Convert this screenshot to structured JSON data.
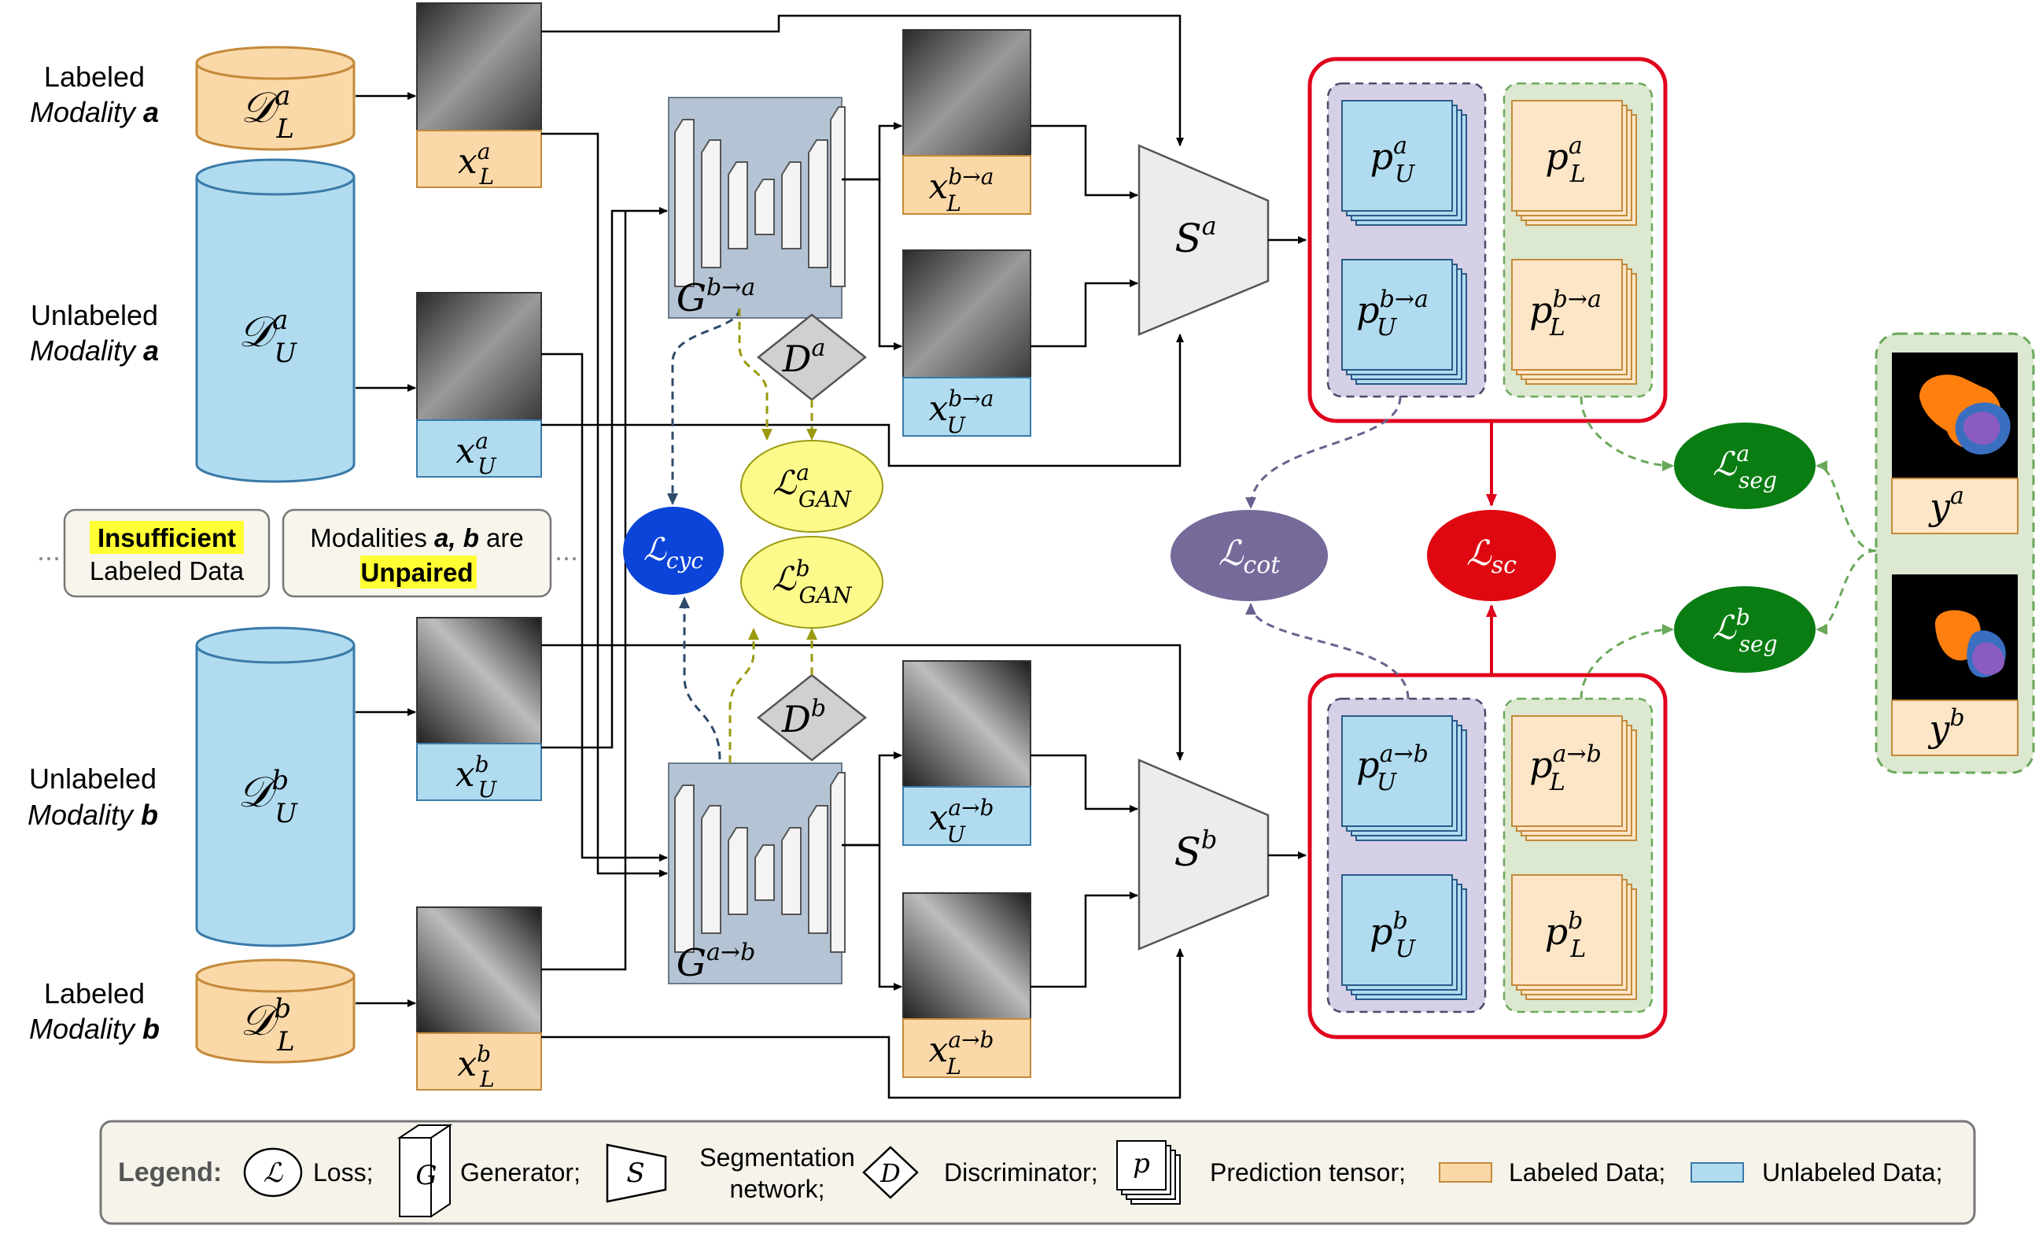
{
  "modalities": {
    "labeled_a": {
      "line1": "Labeled",
      "line2": "Modality ",
      "letter": "a"
    },
    "unlabeled_a": {
      "line1": "Unlabeled",
      "line2": "Modality ",
      "letter": "a"
    },
    "unlabeled_b": {
      "line1": "Unlabeled",
      "line2": "Modality ",
      "letter": "b"
    },
    "labeled_b": {
      "line1": "Labeled",
      "line2": "Modality ",
      "letter": "b"
    }
  },
  "notes": {
    "insufficient": {
      "highlight": "Insufficient",
      "rest": "Labeled Data"
    },
    "unpaired": {
      "prefix": "Modalities ",
      "vars": "a, b",
      "suffix": " are",
      "highlight": "Unpaired"
    },
    "ellipsis": "..."
  },
  "datasets": {
    "DLa": {
      "base": "𝒟",
      "sup": "a",
      "sub": "L"
    },
    "DUa": {
      "base": "𝒟",
      "sup": "a",
      "sub": "U"
    },
    "DUb": {
      "base": "𝒟",
      "sup": "b",
      "sub": "U"
    },
    "DLb": {
      "base": "𝒟",
      "sup": "b",
      "sub": "L"
    }
  },
  "images": {
    "xLa": {
      "base": "x",
      "sup": "a",
      "sub": "L"
    },
    "xUa": {
      "base": "x",
      "sup": "a",
      "sub": "U"
    },
    "xUb": {
      "base": "x",
      "sup": "b",
      "sub": "U"
    },
    "xLb": {
      "base": "x",
      "sup": "b",
      "sub": "L"
    },
    "xLba": {
      "base": "x",
      "sup": "b→a",
      "sub": "L"
    },
    "xUba": {
      "base": "x",
      "sup": "b→a",
      "sub": "U"
    },
    "xUab": {
      "base": "x",
      "sup": "a→b",
      "sub": "U"
    },
    "xLab": {
      "base": "x",
      "sup": "a→b",
      "sub": "L"
    }
  },
  "networks": {
    "Gba": {
      "base": "G",
      "sup": "b→a"
    },
    "Gab": {
      "base": "G",
      "sup": "a→b"
    },
    "Da": {
      "base": "D",
      "sup": "a"
    },
    "Db": {
      "base": "D",
      "sup": "b"
    },
    "Sa": {
      "base": "S",
      "sup": "a"
    },
    "Sb": {
      "base": "S",
      "sup": "b"
    }
  },
  "predictions": {
    "pUa": {
      "base": "p",
      "sup": "a",
      "sub": "U"
    },
    "pUba": {
      "base": "p",
      "sup": "b→a",
      "sub": "U"
    },
    "pLa": {
      "base": "p",
      "sup": "a",
      "sub": "L"
    },
    "pLba": {
      "base": "p",
      "sup": "b→a",
      "sub": "L"
    },
    "pUab": {
      "base": "p",
      "sup": "a→b",
      "sub": "U"
    },
    "pUb": {
      "base": "p",
      "sup": "b",
      "sub": "U"
    },
    "pLab": {
      "base": "p",
      "sup": "a→b",
      "sub": "L"
    },
    "pLb": {
      "base": "p",
      "sup": "b",
      "sub": "L"
    }
  },
  "losses": {
    "cyc": {
      "base": "ℒ",
      "sub": "cyc"
    },
    "gan_a": {
      "base": "ℒ",
      "sup": "a",
      "sub": "GAN"
    },
    "gan_b": {
      "base": "ℒ",
      "sup": "b",
      "sub": "GAN"
    },
    "cot": {
      "base": "ℒ",
      "sub": "cot"
    },
    "sc": {
      "base": "ℒ",
      "sub": "sc"
    },
    "seg_a": {
      "base": "ℒ",
      "sup": "a",
      "sub": "seg"
    },
    "seg_b": {
      "base": "ℒ",
      "sup": "b",
      "sub": "seg"
    }
  },
  "labels": {
    "ya": {
      "base": "y",
      "sup": "a"
    },
    "yb": {
      "base": "y",
      "sup": "b"
    }
  },
  "legend": {
    "title": "Legend:",
    "loss_symbol": "ℒ",
    "loss": "Loss;",
    "gen_symbol": "G",
    "generator": "Generator;",
    "seg_symbol": "S",
    "seg_line1": "Segmentation",
    "seg_line2": "network;",
    "disc_symbol": "D",
    "discriminator": "Discriminator;",
    "pred_symbol": "p",
    "prediction": "Prediction tensor;",
    "labeled": "Labeled Data;",
    "unlabeled": "Unlabeled Data;"
  },
  "colors": {
    "labeled": "#fad8a8",
    "unlabeled": "#b1dcf0",
    "purple_group": "#d6d0e6",
    "green_group": "#dce8d0",
    "red": "#e0001b",
    "loss_blue": "#0a44d8",
    "loss_yellow": "#fdfa8c",
    "loss_purple": "#756a9a",
    "loss_red": "#e00810",
    "loss_green": "#0a7d12",
    "generator_bg": "#b4c4d4",
    "highlight": "#ffff33"
  }
}
